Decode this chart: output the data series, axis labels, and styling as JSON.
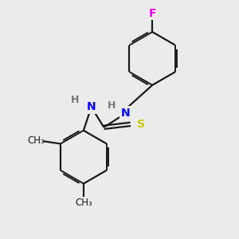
{
  "bg_color": "#ebebeb",
  "bond_color": "#1a1a1a",
  "bond_width": 1.6,
  "dbo": 0.055,
  "atom_colors": {
    "F": "#e800e8",
    "N": "#0000ff",
    "S": "#cccc00",
    "H_label": "#777777",
    "C": "#1a1a1a"
  },
  "font_size": 10,
  "fig_size": [
    3.0,
    3.0
  ],
  "dpi": 100,
  "xlim": [
    0.0,
    6.5
  ],
  "ylim": [
    0.0,
    7.5
  ]
}
